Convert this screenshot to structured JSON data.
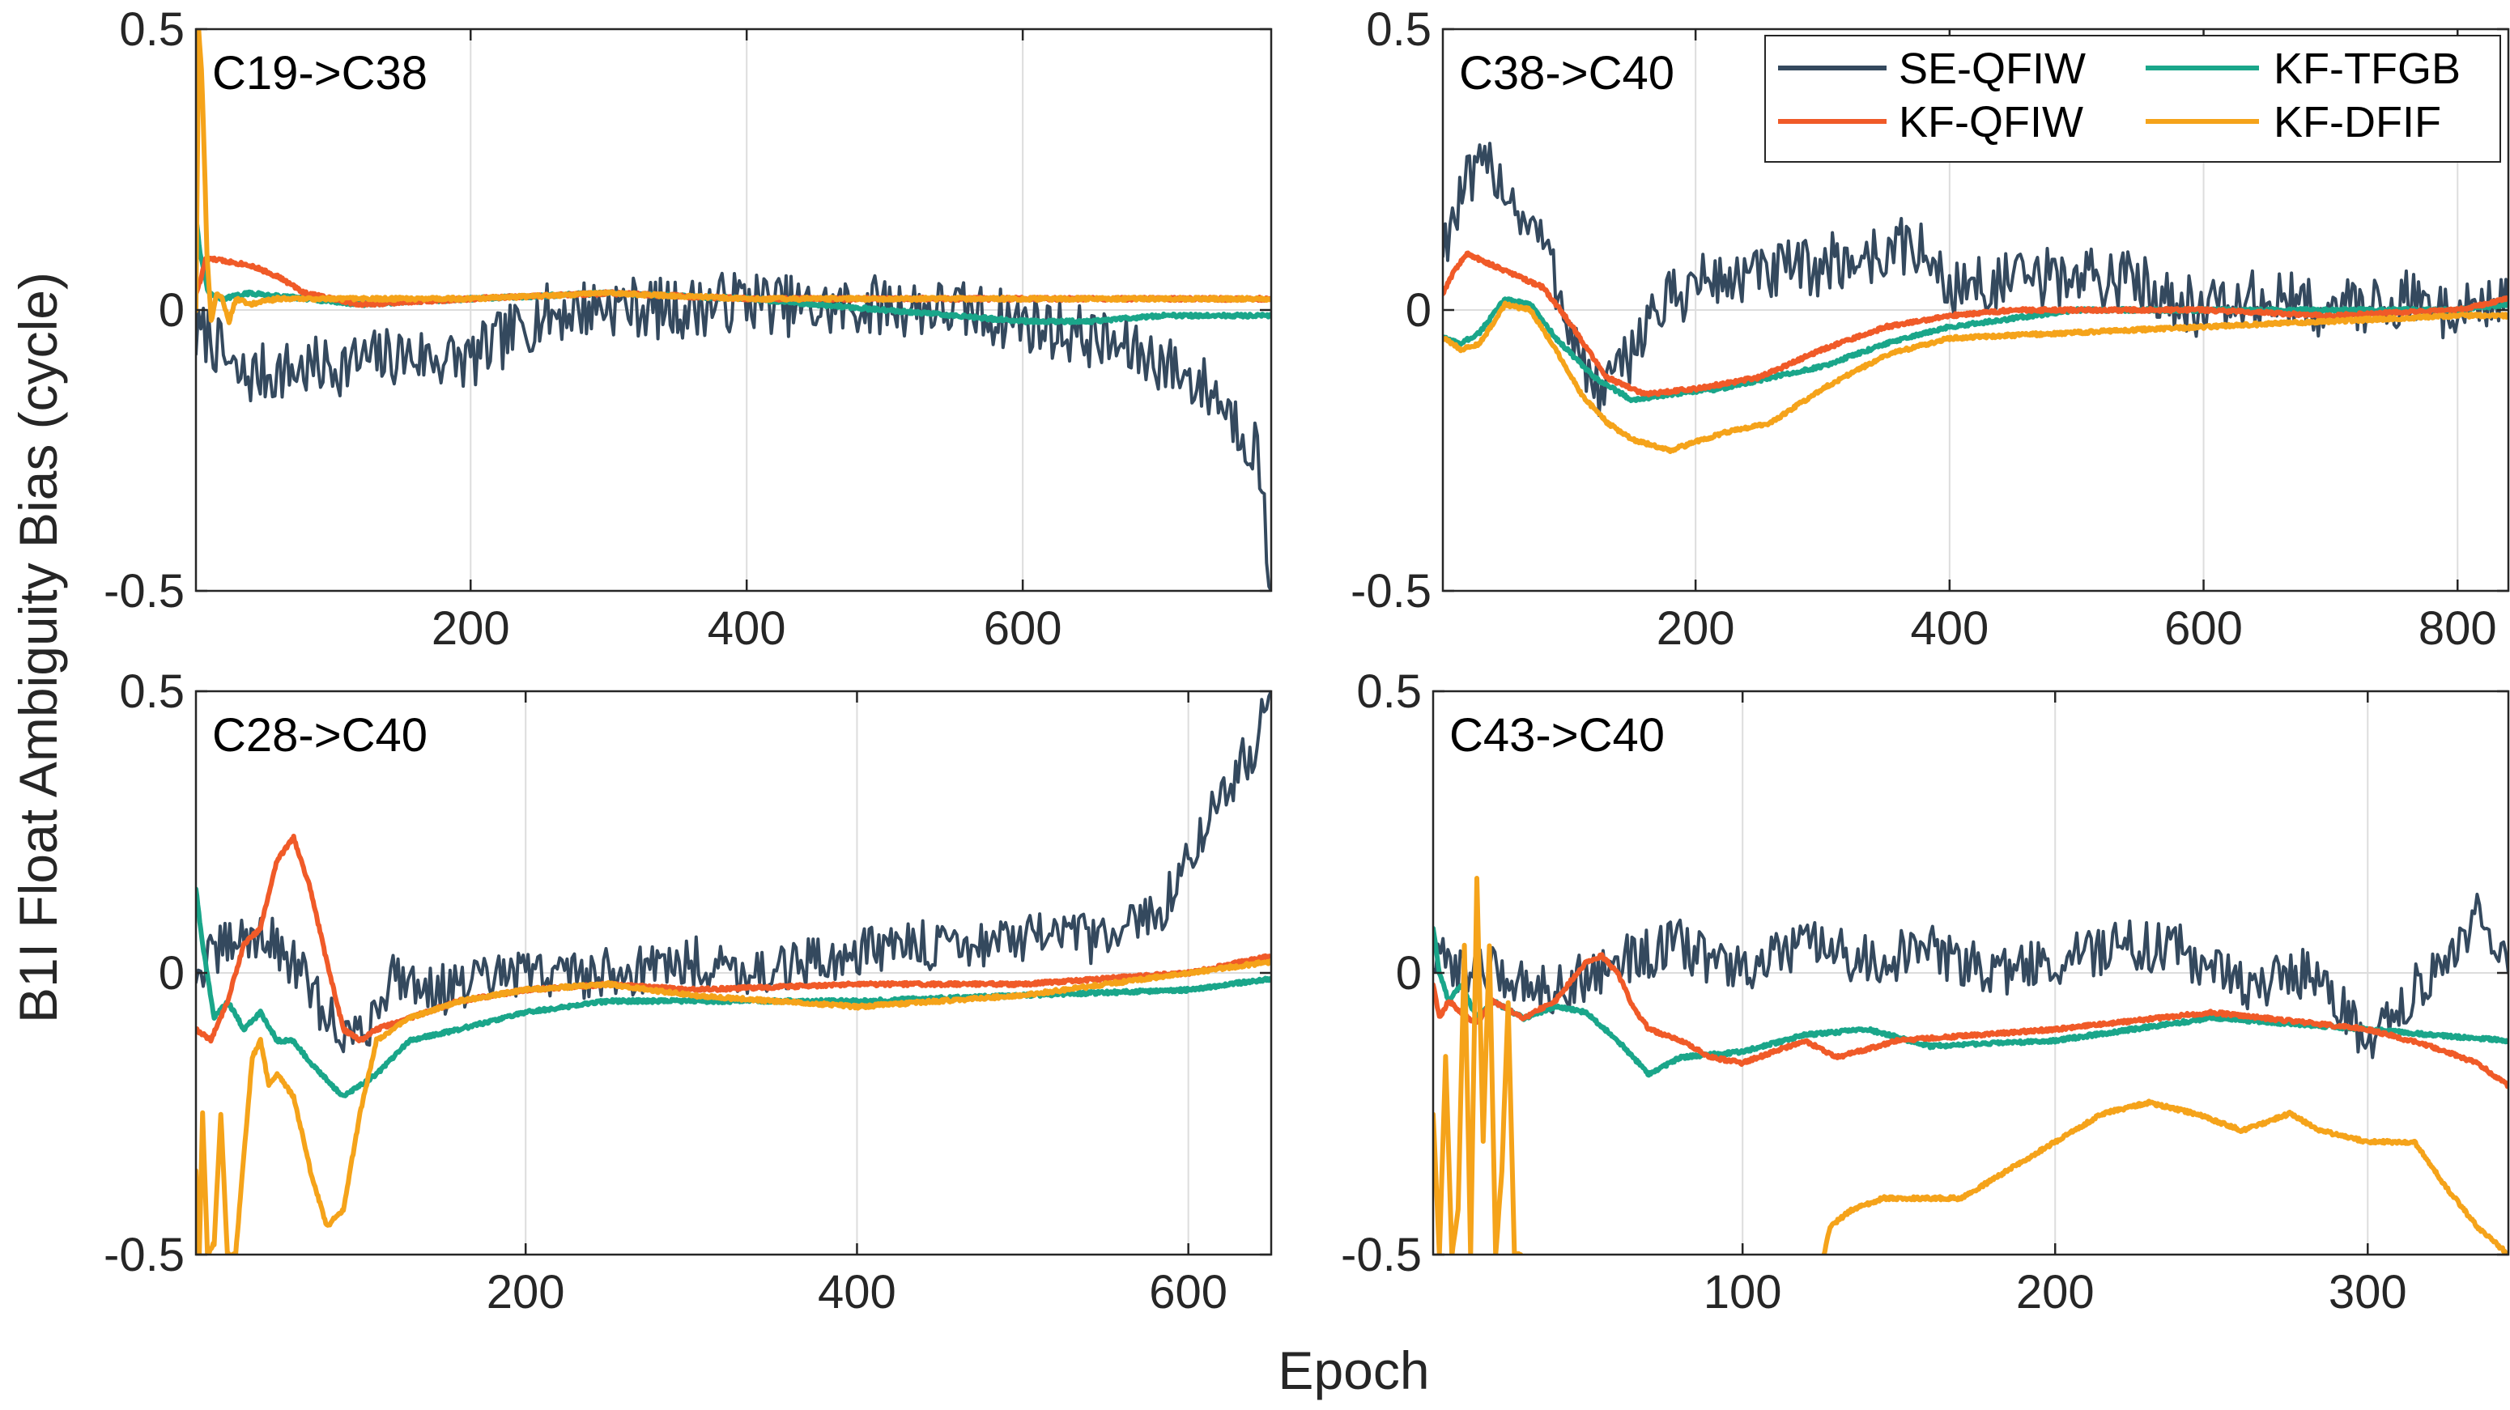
{
  "figure": {
    "ylabel": "B1I Float Ambiguity Bias (cycle)",
    "xlabel": "Epoch"
  },
  "colors": {
    "SE-QFIW": "#34495e",
    "KF-QFIW": "#f05a28",
    "KF-TFGB": "#1aa68a",
    "KF-DFIF": "#f5a31a",
    "grid": "#dddddd",
    "axis": "#262626"
  },
  "legend": [
    {
      "name": "SE-QFIW",
      "color": "#34495e"
    },
    {
      "name": "KF-TFGB",
      "color": "#1aa68a"
    },
    {
      "name": "KF-QFIW",
      "color": "#f05a28"
    },
    {
      "name": "KF-DFIF",
      "color": "#f5a31a"
    }
  ],
  "chart_data": [
    {
      "type": "line",
      "title": "C19->C38",
      "xlim": [
        1,
        780
      ],
      "ylim": [
        -0.5,
        0.5
      ],
      "xticks": [
        200,
        400,
        600
      ],
      "yticks": [
        -0.5,
        0,
        0.5
      ],
      "series": [
        {
          "name": "SE-QFIW",
          "noise": 0.055,
          "x": [
            1,
            10,
            30,
            60,
            100,
            150,
            200,
            250,
            300,
            350,
            400,
            450,
            500,
            550,
            600,
            650,
            700,
            740,
            770,
            780
          ],
          "y": [
            -0.05,
            -0.04,
            -0.12,
            -0.11,
            -0.1,
            -0.08,
            -0.09,
            -0.01,
            0.01,
            0.0,
            0.02,
            0.0,
            0.01,
            0.0,
            -0.02,
            -0.05,
            -0.09,
            -0.15,
            -0.25,
            -0.5
          ]
        },
        {
          "name": "KF-QFIW",
          "noise": 0.003,
          "x": [
            1,
            4,
            8,
            15,
            40,
            60,
            80,
            120,
            200,
            300,
            400,
            500,
            600,
            700,
            780
          ],
          "y": [
            0.03,
            0.05,
            0.09,
            0.09,
            0.08,
            0.06,
            0.03,
            0.01,
            0.02,
            0.03,
            0.02,
            0.02,
            0.02,
            0.02,
            0.02
          ]
        },
        {
          "name": "KF-TFGB",
          "noise": 0.003,
          "x": [
            1,
            4,
            10,
            20,
            40,
            80,
            120,
            200,
            300,
            400,
            450,
            500,
            550,
            600,
            650,
            700,
            780
          ],
          "y": [
            0.17,
            0.1,
            0.03,
            0.02,
            0.03,
            0.02,
            0.01,
            0.02,
            0.03,
            0.02,
            0.01,
            0.0,
            -0.01,
            -0.02,
            -0.02,
            -0.01,
            -0.01
          ]
        },
        {
          "name": "KF-DFIF",
          "noise": 0.003,
          "x": [
            1,
            3,
            5,
            7,
            9,
            12,
            16,
            20,
            25,
            30,
            40,
            60,
            100,
            200,
            300,
            400,
            500,
            600,
            700,
            780
          ],
          "y": [
            0.0,
            0.5,
            0.43,
            0.28,
            0.1,
            -0.02,
            0.03,
            0.02,
            -0.02,
            0.02,
            0.01,
            0.02,
            0.02,
            0.02,
            0.03,
            0.02,
            0.02,
            0.02,
            0.02,
            0.02
          ]
        }
      ]
    },
    {
      "type": "line",
      "title": "C38->C40",
      "xlim": [
        1,
        840
      ],
      "ylim": [
        -0.5,
        0.5
      ],
      "xticks": [
        200,
        400,
        600,
        800
      ],
      "yticks": [
        -0.5,
        0,
        0.5
      ],
      "series": [
        {
          "name": "SE-QFIW",
          "noise": 0.055,
          "x": [
            1,
            20,
            40,
            60,
            80,
            100,
            120,
            140,
            160,
            200,
            250,
            300,
            350,
            370,
            400,
            450,
            500,
            550,
            600,
            650,
            700,
            750,
            800,
            840
          ],
          "y": [
            0.12,
            0.22,
            0.26,
            0.18,
            0.12,
            -0.02,
            -0.15,
            -0.12,
            -0.02,
            0.05,
            0.06,
            0.08,
            0.1,
            0.12,
            0.04,
            0.05,
            0.06,
            0.05,
            0.0,
            0.02,
            0.0,
            0.02,
            0.0,
            0.02
          ]
        },
        {
          "name": "KF-QFIW",
          "noise": 0.003,
          "x": [
            1,
            10,
            20,
            40,
            60,
            80,
            100,
            130,
            160,
            200,
            250,
            300,
            350,
            400,
            450,
            500,
            600,
            700,
            800,
            840
          ],
          "y": [
            0.03,
            0.07,
            0.1,
            0.08,
            0.06,
            0.04,
            -0.02,
            -0.12,
            -0.15,
            -0.14,
            -0.12,
            -0.07,
            -0.03,
            -0.01,
            0.0,
            0.0,
            0.0,
            -0.01,
            0.0,
            0.02
          ]
        },
        {
          "name": "KF-TFGB",
          "noise": 0.003,
          "x": [
            1,
            15,
            30,
            50,
            70,
            90,
            120,
            150,
            180,
            220,
            260,
            300,
            350,
            400,
            500,
            600,
            700,
            800,
            840
          ],
          "y": [
            -0.05,
            -0.06,
            -0.04,
            0.02,
            0.01,
            -0.05,
            -0.12,
            -0.16,
            -0.15,
            -0.14,
            -0.12,
            -0.1,
            -0.06,
            -0.03,
            0.0,
            0.0,
            0.0,
            0.0,
            0.01
          ]
        },
        {
          "name": "KF-DFIF",
          "noise": 0.003,
          "x": [
            1,
            15,
            30,
            50,
            70,
            90,
            110,
            130,
            150,
            180,
            220,
            260,
            300,
            350,
            400,
            500,
            600,
            700,
            800,
            840
          ],
          "y": [
            -0.05,
            -0.07,
            -0.06,
            0.01,
            0.0,
            -0.07,
            -0.15,
            -0.2,
            -0.23,
            -0.25,
            -0.22,
            -0.2,
            -0.14,
            -0.08,
            -0.05,
            -0.04,
            -0.03,
            -0.02,
            -0.01,
            -0.01
          ]
        }
      ]
    },
    {
      "type": "line",
      "title": "C28->C40",
      "xlim": [
        1,
        650
      ],
      "ylim": [
        -0.5,
        0.5
      ],
      "xticks": [
        200,
        400,
        600
      ],
      "yticks": [
        -0.5,
        0,
        0.5
      ],
      "series": [
        {
          "name": "SE-QFIW",
          "noise": 0.045,
          "x": [
            1,
            20,
            40,
            60,
            80,
            100,
            120,
            150,
            200,
            250,
            300,
            350,
            400,
            450,
            500,
            550,
            580,
            600,
            620,
            640,
            650
          ],
          "y": [
            0.0,
            0.05,
            0.07,
            0.02,
            -0.08,
            -0.12,
            0.0,
            -0.03,
            0.0,
            0.0,
            0.02,
            0.0,
            0.04,
            0.05,
            0.06,
            0.06,
            0.1,
            0.2,
            0.32,
            0.4,
            0.5
          ]
        },
        {
          "name": "KF-QFIW",
          "noise": 0.003,
          "x": [
            1,
            10,
            20,
            30,
            40,
            50,
            60,
            70,
            80,
            90,
            100,
            110,
            130,
            160,
            200,
            250,
            300,
            400,
            500,
            550,
            600,
            650
          ],
          "y": [
            -0.1,
            -0.12,
            -0.05,
            0.05,
            0.08,
            0.2,
            0.24,
            0.15,
            0.02,
            -0.1,
            -0.12,
            -0.1,
            -0.08,
            -0.05,
            -0.03,
            -0.02,
            -0.03,
            -0.02,
            -0.02,
            -0.01,
            0.0,
            0.03
          ]
        },
        {
          "name": "KF-TFGB",
          "noise": 0.003,
          "x": [
            1,
            5,
            12,
            20,
            30,
            40,
            50,
            60,
            70,
            80,
            90,
            110,
            130,
            160,
            200,
            250,
            300,
            400,
            500,
            600,
            650
          ],
          "y": [
            0.15,
            0.05,
            -0.08,
            -0.05,
            -0.1,
            -0.07,
            -0.12,
            -0.12,
            -0.16,
            -0.19,
            -0.22,
            -0.18,
            -0.12,
            -0.1,
            -0.07,
            -0.05,
            -0.05,
            -0.05,
            -0.04,
            -0.03,
            -0.01
          ]
        },
        {
          "name": "KF-DFIF",
          "noise": 0.003,
          "x": [
            1,
            3,
            5,
            8,
            12,
            16,
            20,
            25,
            30,
            35,
            40,
            45,
            50,
            55,
            60,
            70,
            80,
            90,
            100,
            110,
            130,
            160,
            200,
            250,
            300,
            400,
            500,
            550,
            600,
            650
          ],
          "y": [
            -0.35,
            -0.5,
            -0.25,
            -0.5,
            -0.48,
            -0.25,
            -0.5,
            -0.5,
            -0.32,
            -0.15,
            -0.12,
            -0.2,
            -0.18,
            -0.2,
            -0.22,
            -0.35,
            -0.45,
            -0.42,
            -0.25,
            -0.12,
            -0.08,
            -0.05,
            -0.03,
            -0.02,
            -0.04,
            -0.06,
            -0.04,
            -0.02,
            0.0,
            0.02
          ]
        }
      ]
    },
    {
      "type": "line",
      "title": "C43->C40",
      "xlim": [
        1,
        345
      ],
      "ylim": [
        -0.5,
        0.5
      ],
      "xticks": [
        100,
        200,
        300
      ],
      "yticks": [
        -0.5,
        0,
        0.5
      ],
      "series": [
        {
          "name": "SE-QFIW",
          "noise": 0.045,
          "x": [
            1,
            20,
            40,
            60,
            80,
            100,
            120,
            140,
            160,
            180,
            200,
            220,
            240,
            260,
            280,
            290,
            300,
            320,
            335,
            345
          ],
          "y": [
            0.02,
            0.0,
            -0.03,
            0.02,
            0.05,
            0.0,
            0.05,
            0.02,
            0.04,
            0.0,
            0.02,
            0.05,
            0.04,
            -0.02,
            0.0,
            -0.05,
            -0.12,
            0.0,
            0.1,
            0.0
          ]
        },
        {
          "name": "KF-QFIW",
          "noise": 0.003,
          "x": [
            1,
            3,
            6,
            10,
            15,
            20,
            30,
            40,
            50,
            55,
            60,
            65,
            70,
            80,
            90,
            100,
            110,
            120,
            130,
            150,
            200,
            250,
            300,
            320,
            335,
            345
          ],
          "y": [
            -0.02,
            -0.08,
            -0.05,
            -0.07,
            -0.09,
            -0.05,
            -0.08,
            -0.05,
            0.02,
            0.03,
            0.0,
            -0.06,
            -0.1,
            -0.12,
            -0.15,
            -0.16,
            -0.14,
            -0.12,
            -0.15,
            -0.12,
            -0.1,
            -0.07,
            -0.1,
            -0.13,
            -0.16,
            -0.2
          ]
        },
        {
          "name": "KF-TFGB",
          "noise": 0.003,
          "x": [
            1,
            3,
            6,
            10,
            15,
            20,
            30,
            40,
            50,
            60,
            70,
            80,
            100,
            120,
            140,
            160,
            200,
            250,
            300,
            320,
            345
          ],
          "y": [
            0.08,
            0.0,
            -0.05,
            -0.02,
            -0.08,
            -0.05,
            -0.08,
            -0.06,
            -0.07,
            -0.12,
            -0.18,
            -0.15,
            -0.14,
            -0.11,
            -0.1,
            -0.13,
            -0.12,
            -0.08,
            -0.1,
            -0.11,
            -0.12
          ]
        },
        {
          "name": "KF-DFIF",
          "noise": 0.003,
          "x": [
            1,
            3,
            5,
            7,
            9,
            11,
            13,
            15,
            17,
            19,
            21,
            23,
            25,
            27,
            29
          ],
          "y": [
            -0.25,
            -0.5,
            -0.15,
            -0.5,
            -0.42,
            0.05,
            -0.5,
            0.17,
            -0.3,
            0.05,
            -0.5,
            -0.35,
            -0.05,
            -0.5,
            -0.5
          ]
        },
        {
          "name": "KF-DFIF",
          "noise": 0.003,
          "x": [
            126,
            128,
            135,
            145,
            155,
            170,
            185,
            200,
            215,
            230,
            245,
            260,
            275,
            285,
            300,
            315,
            325,
            335,
            345
          ],
          "y": [
            -0.5,
            -0.45,
            -0.42,
            -0.4,
            -0.4,
            -0.4,
            -0.35,
            -0.3,
            -0.25,
            -0.23,
            -0.25,
            -0.28,
            -0.25,
            -0.28,
            -0.3,
            -0.3,
            -0.38,
            -0.45,
            -0.5
          ]
        }
      ]
    }
  ]
}
